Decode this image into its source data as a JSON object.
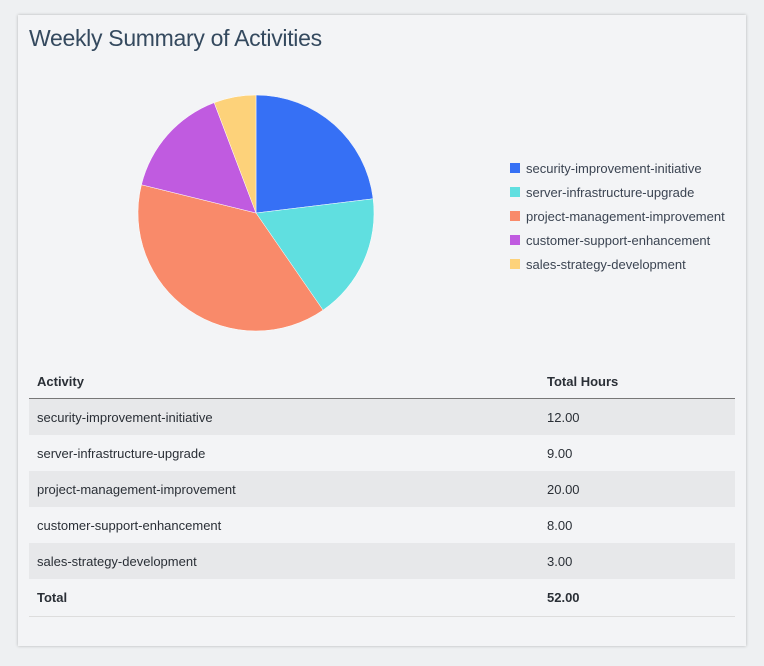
{
  "title": "Weekly Summary of Activities",
  "chart_data": {
    "type": "pie",
    "title": "",
    "categories": [
      "security-improvement-initiative",
      "server-infrastructure-upgrade",
      "project-management-improvement",
      "customer-support-enhancement",
      "sales-strategy-development"
    ],
    "values": [
      12,
      9,
      20,
      8,
      3
    ],
    "colors": [
      "#3670f5",
      "#60dfe0",
      "#f98a6a",
      "#c05be0",
      "#fdd27a"
    ],
    "legend_placement": "right",
    "start_angle": "12 o'clock",
    "direction": "clockwise"
  },
  "table": {
    "headers": [
      "Activity",
      "Total Hours"
    ],
    "rows": [
      [
        "security-improvement-initiative",
        "12.00"
      ],
      [
        "server-infrastructure-upgrade",
        "9.00"
      ],
      [
        "project-management-improvement",
        "20.00"
      ],
      [
        "customer-support-enhancement",
        "8.00"
      ],
      [
        "sales-strategy-development",
        "3.00"
      ]
    ],
    "total": [
      "Total",
      "52.00"
    ]
  }
}
